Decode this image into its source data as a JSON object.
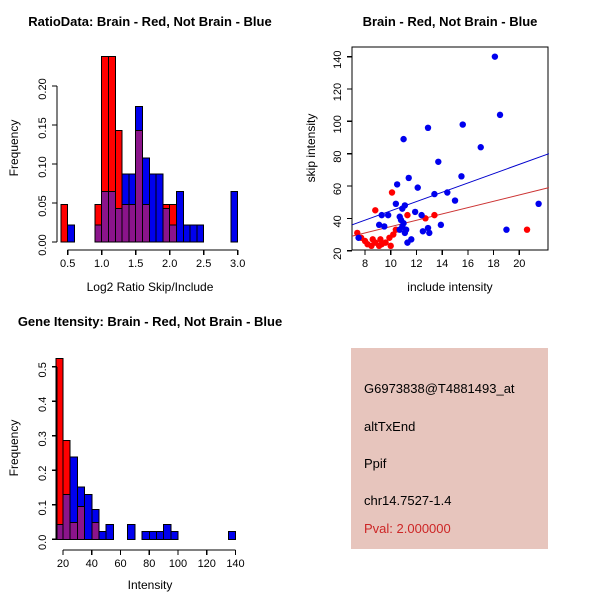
{
  "colors": {
    "red": "#FF0000",
    "blue": "#0000EE",
    "overlap_purple": "#8B148B",
    "fit_line_blue": "#0000CD",
    "fit_line_red": "#CC3333",
    "axis": "#000000",
    "background": "#FFFFFF",
    "info_bg": "#E7C5BD",
    "pval_red": "#CD2626"
  },
  "chart_data": [
    {
      "type": "bar",
      "variant": "overlaid-histogram",
      "title": "RatioData: Brain - Red, Not Brain - Blue",
      "xlabel": "Log2 Ratio Skip/Include",
      "ylabel": "Frequency",
      "series": [
        {
          "name": "Brain",
          "color_key": "red"
        },
        {
          "name": "Not Brain",
          "color_key": "blue"
        }
      ],
      "bin_width": 0.1,
      "xlim": [
        0.35,
        3.1
      ],
      "ylim": [
        0,
        0.25
      ],
      "xticks": [
        {
          "v": 0.5,
          "label": "0.5"
        },
        {
          "v": 1.0,
          "label": "1.0"
        },
        {
          "v": 1.5,
          "label": "1.5"
        },
        {
          "v": 2.0,
          "label": "2.0"
        },
        {
          "v": 2.5,
          "label": "2.5"
        },
        {
          "v": 3.0,
          "label": "3.0"
        }
      ],
      "yticks": [
        {
          "v": 0.0,
          "label": "0.00"
        },
        {
          "v": 0.05,
          "label": "0.05"
        },
        {
          "v": 0.1,
          "label": "0.10"
        },
        {
          "v": 0.15,
          "label": "0.15"
        },
        {
          "v": 0.2,
          "label": "0.20"
        }
      ],
      "bars": [
        {
          "x": 0.4,
          "red": 0.048,
          "blue": 0
        },
        {
          "x": 0.5,
          "red": 0,
          "blue": 0.022
        },
        {
          "x": 0.9,
          "red": 0.048,
          "blue": 0.022
        },
        {
          "x": 1.0,
          "red": 0.238,
          "blue": 0.065
        },
        {
          "x": 1.1,
          "red": 0.238,
          "blue": 0.065
        },
        {
          "x": 1.2,
          "red": 0.143,
          "blue": 0.043
        },
        {
          "x": 1.3,
          "red": 0.048,
          "blue": 0.087
        },
        {
          "x": 1.4,
          "red": 0.048,
          "blue": 0.087
        },
        {
          "x": 1.5,
          "red": 0.143,
          "blue": 0.174
        },
        {
          "x": 1.6,
          "red": 0.048,
          "blue": 0.108
        },
        {
          "x": 1.7,
          "red": 0,
          "blue": 0.087
        },
        {
          "x": 1.8,
          "red": 0,
          "blue": 0.087
        },
        {
          "x": 1.9,
          "red": 0.048,
          "blue": 0.043
        },
        {
          "x": 2.0,
          "red": 0.048,
          "blue": 0.022
        },
        {
          "x": 2.1,
          "red": 0,
          "blue": 0.065
        },
        {
          "x": 2.2,
          "red": 0,
          "blue": 0.022
        },
        {
          "x": 2.3,
          "red": 0,
          "blue": 0.022
        },
        {
          "x": 2.4,
          "red": 0,
          "blue": 0.022
        },
        {
          "x": 2.9,
          "red": 0,
          "blue": 0.065
        }
      ]
    },
    {
      "type": "scatter",
      "title": "Brain - Red, Not Brain - Blue",
      "xlabel": "include intensity",
      "ylabel": "skip intensity",
      "xlim": [
        7,
        22.3
      ],
      "ylim": [
        15,
        146
      ],
      "xticks": [
        {
          "v": 8,
          "label": "8"
        },
        {
          "v": 10,
          "label": "10"
        },
        {
          "v": 12,
          "label": "12"
        },
        {
          "v": 14,
          "label": "14"
        },
        {
          "v": 16,
          "label": "16"
        },
        {
          "v": 18,
          "label": "18"
        },
        {
          "v": 20,
          "label": "20"
        }
      ],
      "yticks": [
        {
          "v": 20,
          "label": "20"
        },
        {
          "v": 40,
          "label": "40"
        },
        {
          "v": 60,
          "label": "60"
        },
        {
          "v": 80,
          "label": "80"
        },
        {
          "v": 100,
          "label": "100"
        },
        {
          "v": 120,
          "label": "120"
        },
        {
          "v": 140,
          "label": "140"
        }
      ],
      "blue_points": [
        [
          18.1,
          140
        ],
        [
          18.5,
          104
        ],
        [
          15.6,
          98
        ],
        [
          12.9,
          96
        ],
        [
          11,
          89
        ],
        [
          17,
          84
        ],
        [
          13.7,
          75
        ],
        [
          15.5,
          66
        ],
        [
          11.4,
          65
        ],
        [
          10.5,
          61
        ],
        [
          12.1,
          59
        ],
        [
          14.4,
          56
        ],
        [
          13.4,
          55
        ],
        [
          15,
          51
        ],
        [
          21.5,
          49
        ],
        [
          10.4,
          49
        ],
        [
          11.1,
          48
        ],
        [
          10.9,
          46
        ],
        [
          11.9,
          44
        ],
        [
          12.4,
          42
        ],
        [
          9.3,
          42
        ],
        [
          9.8,
          42
        ],
        [
          9.1,
          36
        ],
        [
          9.5,
          35
        ],
        [
          10.7,
          41
        ],
        [
          10.8,
          39
        ],
        [
          11,
          37
        ],
        [
          10.9,
          35
        ],
        [
          11.2,
          33
        ],
        [
          10.7,
          33
        ],
        [
          11.1,
          31
        ],
        [
          12.5,
          32
        ],
        [
          12.9,
          34
        ],
        [
          13,
          31
        ],
        [
          11.6,
          27
        ],
        [
          11.3,
          25
        ],
        [
          7.5,
          28
        ],
        [
          19,
          33
        ],
        [
          13.9,
          36
        ]
      ],
      "red_points": [
        [
          10.1,
          56
        ],
        [
          8.8,
          45
        ],
        [
          11.3,
          42
        ],
        [
          13.4,
          42
        ],
        [
          12.7,
          40
        ],
        [
          20.6,
          33
        ],
        [
          10.4,
          33
        ],
        [
          10.2,
          30
        ],
        [
          9.9,
          28
        ],
        [
          7.4,
          31
        ],
        [
          7.7,
          28
        ],
        [
          8,
          26
        ],
        [
          8.2,
          24
        ],
        [
          8.5,
          23
        ],
        [
          8.8,
          25
        ],
        [
          9.1,
          23
        ],
        [
          9.3,
          24
        ],
        [
          9.6,
          25
        ],
        [
          10,
          23
        ],
        [
          8.6,
          27
        ],
        [
          9.2,
          27
        ]
      ],
      "fit_lines": [
        {
          "series": "Not Brain",
          "color_key": "fit_line_blue",
          "x1": 7,
          "y1": 36,
          "x2": 22.3,
          "y2": 80
        },
        {
          "series": "Brain",
          "color_key": "fit_line_red",
          "x1": 7,
          "y1": 29,
          "x2": 22.3,
          "y2": 59
        }
      ]
    },
    {
      "type": "bar",
      "variant": "overlaid-histogram",
      "title": "Gene Itensity: Brain - Red, Not Brain - Blue",
      "xlabel": "Intensity",
      "ylabel": "Frequency",
      "series": [
        {
          "name": "Brain",
          "color_key": "red"
        },
        {
          "name": "Not Brain",
          "color_key": "blue"
        }
      ],
      "bin_width": 5,
      "xlim": [
        15,
        145
      ],
      "ylim": [
        0,
        0.55
      ],
      "xticks": [
        {
          "v": 20,
          "label": "20"
        },
        {
          "v": 40,
          "label": "40"
        },
        {
          "v": 60,
          "label": "60"
        },
        {
          "v": 80,
          "label": "80"
        },
        {
          "v": 100,
          "label": "100"
        },
        {
          "v": 120,
          "label": "120"
        },
        {
          "v": 140,
          "label": "140"
        }
      ],
      "yticks": [
        {
          "v": 0.0,
          "label": "0.0"
        },
        {
          "v": 0.1,
          "label": "0.1"
        },
        {
          "v": 0.2,
          "label": "0.2"
        },
        {
          "v": 0.3,
          "label": "0.3"
        },
        {
          "v": 0.4,
          "label": "0.4"
        },
        {
          "v": 0.5,
          "label": "0.5"
        }
      ],
      "bars": [
        {
          "x": 15,
          "red": 0.524,
          "blue": 0.043
        },
        {
          "x": 20,
          "red": 0.286,
          "blue": 0.13
        },
        {
          "x": 25,
          "red": 0.048,
          "blue": 0.238
        },
        {
          "x": 30,
          "red": 0.095,
          "blue": 0.152
        },
        {
          "x": 35,
          "red": 0,
          "blue": 0.13
        },
        {
          "x": 40,
          "red": 0.048,
          "blue": 0.087
        },
        {
          "x": 45,
          "red": 0,
          "blue": 0.022
        },
        {
          "x": 50,
          "red": 0,
          "blue": 0.043
        },
        {
          "x": 65,
          "red": 0,
          "blue": 0.043
        },
        {
          "x": 75,
          "red": 0,
          "blue": 0.022
        },
        {
          "x": 80,
          "red": 0,
          "blue": 0.022
        },
        {
          "x": 85,
          "red": 0,
          "blue": 0.022
        },
        {
          "x": 90,
          "red": 0,
          "blue": 0.043
        },
        {
          "x": 95,
          "red": 0,
          "blue": 0.022
        },
        {
          "x": 135,
          "red": 0,
          "blue": 0.022
        }
      ]
    }
  ],
  "info_panel": {
    "probe_id": "G6973838@T4881493_at",
    "event_type": "altTxEnd",
    "gene": "Ppif",
    "locus": "chr14.7527-1.4",
    "pval": "Pval: 2.000000"
  }
}
